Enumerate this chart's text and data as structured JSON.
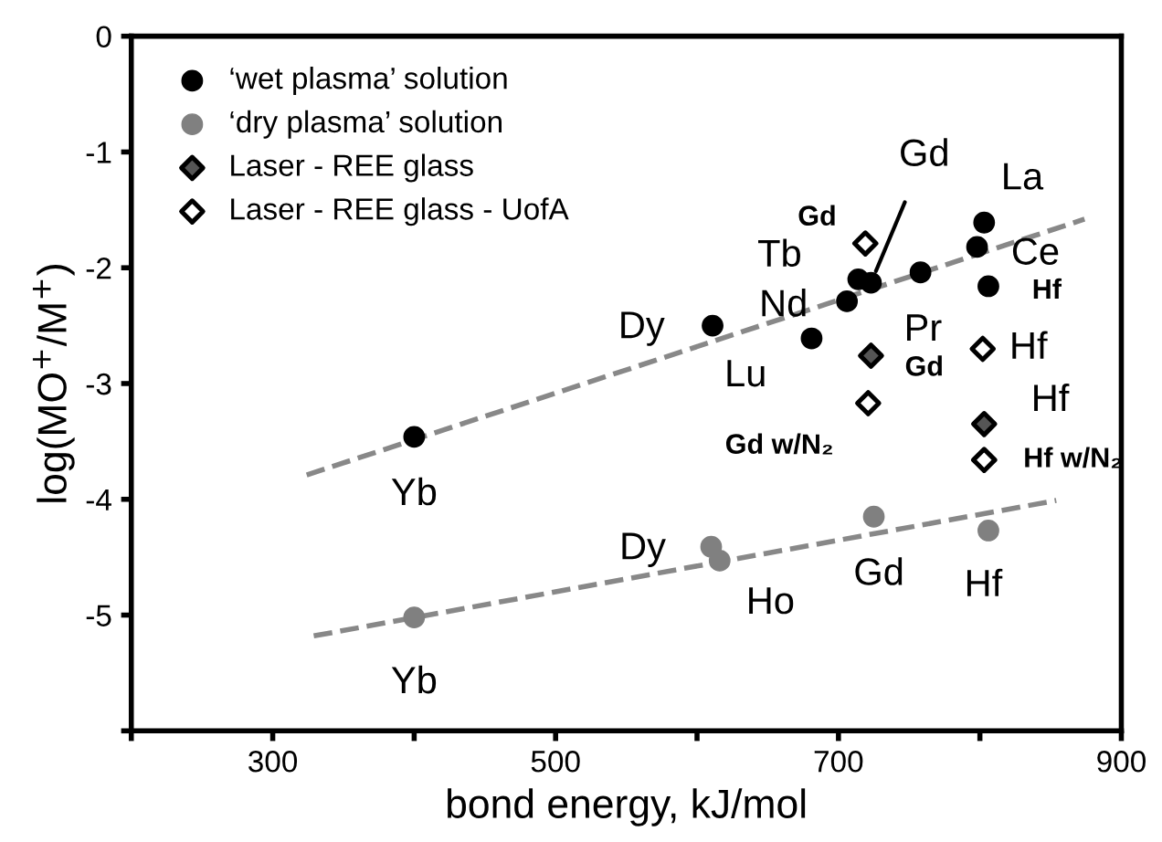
{
  "chart_data": {
    "type": "scatter",
    "xlabel": "bond energy, kJ/mol",
    "ylabel": "log(MO$^{+}$/M$^{+}$)",
    "xlim": [
      200,
      900
    ],
    "xticks": [
      {
        "value": 200,
        "label": null
      },
      300,
      {
        "value": 400,
        "label": null
      },
      500,
      {
        "value": 600,
        "label": null
      },
      700,
      {
        "value": 800,
        "label": null
      },
      900
    ],
    "ylim": [
      -6,
      0
    ],
    "yticks": [
      {
        "value": -6,
        "label": null
      },
      -5,
      -4,
      -3,
      -2,
      -1,
      0
    ],
    "grid": false,
    "legend": "top left",
    "series": [
      {
        "name": "‘wet plasma’ solution",
        "color": "#000000",
        "marker": "circle",
        "x": [
          400,
          611,
          681,
          706,
          714,
          723,
          758,
          798,
          803,
          806
        ],
        "values": [
          -3.46,
          -2.5,
          -2.61,
          -2.29,
          -2.1,
          -2.13,
          -2.04,
          -1.82,
          -1.61,
          -2.16
        ]
      },
      {
        "name": "‘dry plasma’ solution",
        "color": "#808080",
        "marker": "circle",
        "x": [
          400,
          610,
          616,
          725,
          806
        ],
        "values": [
          -5.02,
          -4.41,
          -4.53,
          -4.15,
          -4.27
        ]
      },
      {
        "name": "Laser - REE glass",
        "color": "#555555",
        "marker": "diamond",
        "x": [
          723,
          803
        ],
        "values": [
          -2.76,
          -3.35
        ]
      },
      {
        "name": "Laser - REE glass - UofA",
        "color": "#ffffff",
        "marker": "diamond",
        "x": [
          719,
          721,
          802,
          803
        ],
        "values": [
          -1.79,
          -3.17,
          -2.7,
          -3.66
        ]
      },
      {
        "type": "line",
        "color": "#888888",
        "line_style": "dashed",
        "marker": "none",
        "x": [
          324,
          874
        ],
        "values": [
          -3.79,
          -1.58
        ]
      },
      {
        "type": "line",
        "color": "#888888",
        "line_style": "dashed",
        "marker": "none",
        "x": [
          329,
          854
        ],
        "values": [
          -5.18,
          -4.01
        ]
      }
    ],
    "annotations": [
      {
        "text": "Yb",
        "x": 400,
        "y": -3.46
      },
      {
        "text": "Dy",
        "x": 611,
        "y": -2.5
      },
      {
        "text": "Lu",
        "x": 681,
        "y": -2.61
      },
      {
        "text": "Nd",
        "x": 706,
        "y": -2.29
      },
      {
        "text": "Tb",
        "x": 714,
        "y": -2.1
      },
      {
        "text": "Gd",
        "x": 723,
        "y": -2.13
      },
      {
        "text": "Pr",
        "x": 758,
        "y": -2.04
      },
      {
        "text": "Ce",
        "x": 798,
        "y": -1.82
      },
      {
        "text": "La",
        "x": 803,
        "y": -1.61
      },
      {
        "text": "Hf",
        "x": 806,
        "y": -2.16
      },
      {
        "text": "Yb",
        "x": 400,
        "y": -5.02
      },
      {
        "text": "Dy",
        "x": 610,
        "y": -4.41
      },
      {
        "text": "Ho",
        "x": 616,
        "y": -4.53
      },
      {
        "text": "Gd",
        "x": 725,
        "y": -4.15
      },
      {
        "text": "Hf",
        "x": 806,
        "y": -4.27
      },
      {
        "text": "Gd",
        "x": 723,
        "y": -2.76
      },
      {
        "text": "Hf",
        "x": 803,
        "y": -3.35
      },
      {
        "text": "Gd",
        "x": 719,
        "y": -1.79
      },
      {
        "text": "Gd w/N₂",
        "x": 721,
        "y": -3.17
      },
      {
        "text": "Hf",
        "x": 802,
        "y": -2.7
      },
      {
        "text": "Hf w/N₂",
        "x": 803,
        "y": -3.66
      }
    ]
  }
}
